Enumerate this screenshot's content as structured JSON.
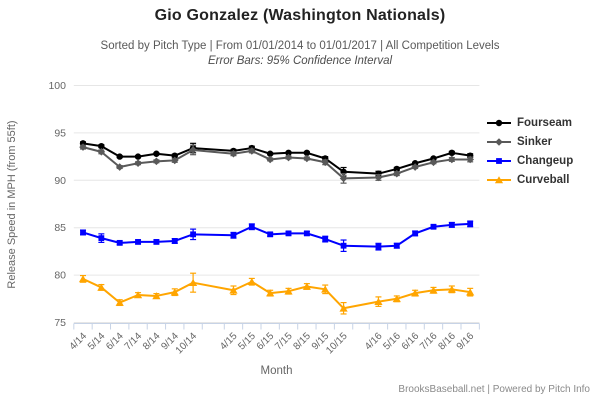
{
  "chart_data": {
    "type": "line",
    "title": "Gio Gonzalez (Washington Nationals)",
    "subtitle": "Sorted by Pitch Type | From 01/01/2014 to 01/01/2017 | All Competition Levels",
    "subtitle_note": "Error Bars: 95% Confidence Interval",
    "xlabel": "Month",
    "ylabel": "Release Speed in MPH (from 55ft)",
    "ylim": [
      75,
      100
    ],
    "yticks": [
      75,
      80,
      85,
      90,
      95,
      100
    ],
    "grid": true,
    "legend_position": "right",
    "error_bars": "95% Confidence Interval",
    "categories": [
      "4/14",
      "5/14",
      "6/14",
      "7/14",
      "8/14",
      "9/14",
      "10/14",
      "4/15",
      "5/15",
      "6/15",
      "7/15",
      "8/15",
      "9/15",
      "10/15",
      "4/16",
      "5/16",
      "6/16",
      "7/16",
      "8/16",
      "9/16"
    ],
    "x_index": [
      0,
      1,
      2,
      3,
      4,
      5,
      6,
      8.2,
      9.2,
      10.2,
      11.2,
      12.2,
      13.2,
      14.2,
      16.1,
      17.1,
      18.1,
      19.1,
      20.1,
      21.1
    ],
    "series": [
      {
        "name": "Fourseam",
        "color": "#000000",
        "marker": "circle",
        "values": [
          93.9,
          93.6,
          92.5,
          92.5,
          92.8,
          92.6,
          93.4,
          93.1,
          93.4,
          92.8,
          92.9,
          92.9,
          92.3,
          90.9,
          90.7,
          91.2,
          91.8,
          92.3,
          92.9,
          92.6
        ],
        "errors": [
          0.15,
          0.15,
          0.1,
          0.1,
          0.1,
          0.15,
          0.5,
          0.15,
          0.2,
          0.1,
          0.1,
          0.1,
          0.2,
          0.45,
          0.25,
          0.15,
          0.1,
          0.1,
          0.15,
          0.2
        ]
      },
      {
        "name": "Sinker",
        "color": "#595959",
        "marker": "diamond",
        "values": [
          93.5,
          93.0,
          91.4,
          91.8,
          92.0,
          92.1,
          93.2,
          92.8,
          93.1,
          92.2,
          92.4,
          92.3,
          91.9,
          90.2,
          90.3,
          90.7,
          91.4,
          91.9,
          92.2,
          92.2
        ],
        "errors": [
          0.2,
          0.2,
          0.15,
          0.15,
          0.15,
          0.2,
          0.5,
          0.2,
          0.2,
          0.15,
          0.15,
          0.15,
          0.25,
          0.5,
          0.3,
          0.2,
          0.15,
          0.15,
          0.2,
          0.25
        ]
      },
      {
        "name": "Changeup",
        "color": "#0000ff",
        "marker": "square",
        "values": [
          84.5,
          83.9,
          83.4,
          83.5,
          83.5,
          83.6,
          84.3,
          84.2,
          85.1,
          84.3,
          84.4,
          84.4,
          83.8,
          83.1,
          83.0,
          83.1,
          84.4,
          85.1,
          85.3,
          85.4
        ],
        "errors": [
          0.25,
          0.45,
          0.2,
          0.2,
          0.2,
          0.25,
          0.55,
          0.3,
          0.3,
          0.2,
          0.2,
          0.2,
          0.3,
          0.6,
          0.35,
          0.25,
          0.25,
          0.2,
          0.25,
          0.3
        ]
      },
      {
        "name": "Curveball",
        "color": "#ffa500",
        "marker": "triangle",
        "values": [
          79.6,
          78.7,
          77.1,
          77.9,
          77.8,
          78.2,
          79.2,
          78.4,
          79.3,
          78.1,
          78.3,
          78.8,
          78.5,
          76.5,
          77.2,
          77.5,
          78.1,
          78.4,
          78.5,
          78.2
        ],
        "errors": [
          0.35,
          0.3,
          0.3,
          0.25,
          0.25,
          0.35,
          1.0,
          0.45,
          0.35,
          0.3,
          0.3,
          0.3,
          0.45,
          0.6,
          0.5,
          0.3,
          0.3,
          0.3,
          0.35,
          0.4
        ]
      }
    ]
  },
  "footer": {
    "credit": "BrooksBaseball.net | Powered by Pitch Info"
  },
  "colors": {
    "grid": "#e6e6e6",
    "axis_line": "#c7d3e6",
    "tick_label": "#666666",
    "axis_title": "#666666",
    "legend_text": "#333333"
  }
}
